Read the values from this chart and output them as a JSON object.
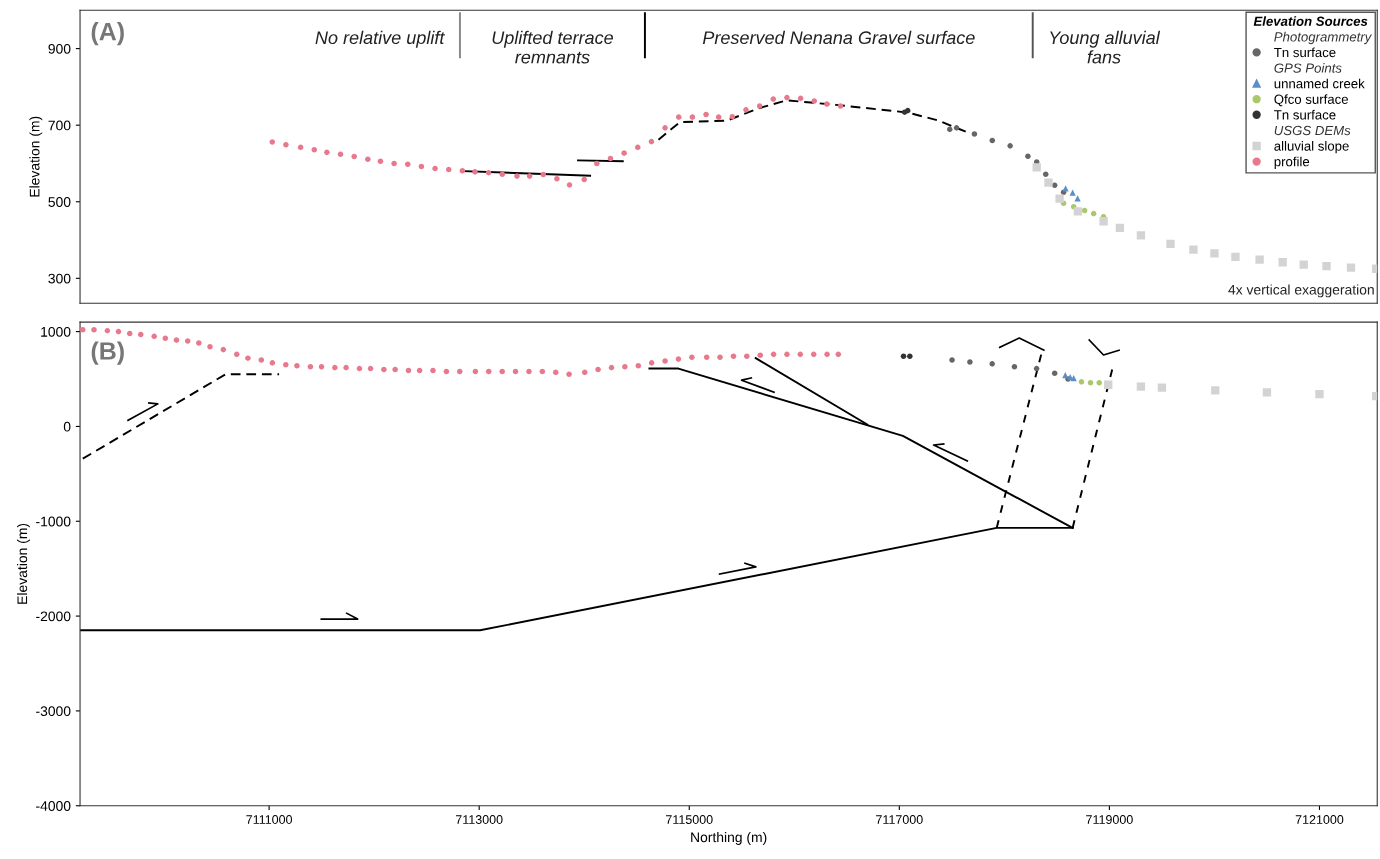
{
  "chart_data": [
    {
      "type": "scatter",
      "ylabel": "Elevation (m)",
      "xlim": [
        7109200,
        7121550
      ],
      "ylim": [
        235,
        1000
      ],
      "yticks": [
        300,
        500,
        700,
        900
      ],
      "tick_labels": "y",
      "grid": false,
      "legend": "top right",
      "legend_title": "Elevation Sources",
      "annotations": [
        "(A)",
        "No relative uplift",
        "Uplifted terrace\nremnants",
        "Preserved Nenana Gravel surface",
        "Young alluvial\nfans",
        "4x vertical exaggeration"
      ],
      "ref_lines": [
        {
          "axis": "x",
          "value": 7112817,
          "label": null,
          "color": "#888888"
        },
        {
          "axis": "x",
          "value": 7114578,
          "label": null,
          "color": "#000000"
        },
        {
          "axis": "x",
          "value": 7118270,
          "label": null,
          "color": "#555555"
        }
      ],
      "series": [
        {
          "name": "Photogrammetry",
          "marker": "none",
          "color": "#333333"
        },
        {
          "name": "Tn surface",
          "marker": "circle",
          "color": "#666666",
          "x": [
            7117480,
            7117545,
            7117715,
            7117885,
            7118055,
            7118224,
            7118308,
            7118394,
            7118479,
            7118564
          ],
          "values": [
            689,
            693,
            677,
            660,
            646,
            619,
            604,
            572,
            543,
            525
          ]
        },
        {
          "name": "GPS Points",
          "marker": "none",
          "color": "#333333"
        },
        {
          "name": "unnamed creek",
          "marker": "triangle",
          "color": "#5b8fc7",
          "x": [
            7118583,
            7118650,
            7118697
          ],
          "values": [
            535,
            524,
            509
          ]
        },
        {
          "name": "Qfco surface",
          "marker": "circle",
          "color": "#a8c86a",
          "x": [
            7118564,
            7118660,
            7118764,
            7118850,
            7118944
          ],
          "values": [
            496,
            487,
            477,
            469,
            461
          ]
        },
        {
          "name": "Tn surface",
          "marker": "circle",
          "color": "#333333",
          "x": [
            7117050,
            7117080
          ],
          "values": [
            734,
            738
          ]
        },
        {
          "name": "USGS DEMs",
          "marker": "none",
          "color": "#333333"
        },
        {
          "name": "alluvial slope",
          "marker": "square",
          "color": "#d3d3d3",
          "x": [
            7118308,
            7118420,
            7118526,
            7118700,
            7118945,
            7119100,
            7119300,
            7119582,
            7119800,
            7120000,
            7120200,
            7120430,
            7120650,
            7120850,
            7121067,
            7121300,
            7121540
          ],
          "values": [
            590,
            550,
            508,
            475,
            449,
            432,
            412,
            390,
            375,
            365,
            356,
            349,
            342,
            336,
            332,
            328,
            325
          ]
        },
        {
          "name": "profile",
          "marker": "circle",
          "color": "#e8788c",
          "x": [
            7111030,
            7111160,
            7111300,
            7111430,
            7111550,
            7111680,
            7111810,
            7111940,
            7112060,
            7112190,
            7112320,
            7112450,
            7112580,
            7112710,
            7112840,
            7112960,
            7113090,
            7113220,
            7113360,
            7113480,
            7113610,
            7113740,
            7113860,
            7114000,
            7114120,
            7114250,
            7114380,
            7114510,
            7114640,
            7114770,
            7114900,
            7115030,
            7115160,
            7115280,
            7115410,
            7115540,
            7115670,
            7115800,
            7115930,
            7116060,
            7116190,
            7116310,
            7116440
          ],
          "values": [
            656,
            649,
            642,
            636,
            629,
            624,
            618,
            611,
            606,
            600,
            598,
            592,
            587,
            584,
            581,
            578,
            576,
            572,
            567,
            567,
            571,
            560,
            544,
            558,
            600,
            613,
            627,
            642,
            657,
            693,
            721,
            721,
            728,
            721,
            722,
            740,
            750,
            768,
            772,
            770,
            763,
            755,
            750
          ]
        },
        {
          "type": "line",
          "line_style": "solid",
          "color": "#000000",
          "x": [
            7112858,
            7114056
          ],
          "values": [
            580,
            568
          ]
        },
        {
          "type": "line",
          "line_style": "solid",
          "color": "#000000",
          "x": [
            7113941,
            7114367
          ],
          "values": [
            608,
            606
          ]
        },
        {
          "type": "line",
          "line_style": "dashed",
          "color": "#000000",
          "x": [
            7114707,
            7114911,
            7115358,
            7115672,
            7115929,
            7116395,
            7116776,
            7117080,
            7117375,
            7117632
          ],
          "values": [
            662,
            708,
            712,
            745,
            765,
            753,
            742,
            733,
            712,
            683
          ]
        }
      ]
    },
    {
      "type": "scatter",
      "ylabel": "Elevation (m)",
      "xlabel": "Northing (m)",
      "xlim": [
        7109200,
        7121550
      ],
      "ylim": [
        -4000,
        1100
      ],
      "xticks": [
        7111000,
        7113000,
        7115000,
        7117000,
        7119000,
        7121000
      ],
      "yticks": [
        1000,
        0,
        -1000,
        -2000,
        -3000,
        -4000
      ],
      "grid": false,
      "annotations": [
        "(B)"
      ],
      "series": [
        {
          "marker": "circle",
          "color": "#666666",
          "x": [
            7117502,
            7117672,
            7117884,
            7118096,
            7118307,
            7118479,
            7118606
          ],
          "values": [
            700,
            680,
            660,
            630,
            610,
            560,
            500
          ]
        },
        {
          "marker": "triangle",
          "color": "#5b8fc7",
          "x": [
            7118580,
            7118627,
            7118660
          ],
          "values": [
            540,
            520,
            510
          ]
        },
        {
          "marker": "circle",
          "color": "#a8c86a",
          "x": [
            7118734,
            7118820,
            7118903
          ],
          "values": [
            470,
            460,
            460
          ]
        },
        {
          "marker": "circle",
          "color": "#333333",
          "x": [
            7117040,
            7117100
          ],
          "values": [
            740,
            740
          ]
        },
        {
          "marker": "square",
          "color": "#d3d3d3",
          "x": [
            7118989,
            7119300,
            7119500,
            7120008,
            7120500,
            7121000,
            7121540
          ],
          "values": [
            440,
            420,
            410,
            380,
            360,
            340,
            320
          ]
        },
        {
          "marker": "circle",
          "color": "#e8788c",
          "x": [
            7109226,
            7109333,
            7109460,
            7109566,
            7109673,
            7109778,
            7109906,
            7110012,
            7110118,
            7110225,
            7110331,
            7110437,
            7110564,
            7110692,
            7110798,
            7110926,
            7111031,
            7111159,
            7111265,
            7111393,
            7111499,
            7111626,
            7111733,
            7111860,
            7111966,
            7112093,
            7112200,
            7112327,
            7112433,
            7112560,
            7112688,
            7112815,
            7112964,
            7113091,
            7113219,
            7113346,
            7113474,
            7113601,
            7113729,
            7113856,
            7114005,
            7114132,
            7114260,
            7114387,
            7114515,
            7114642,
            7114770,
            7114897,
            7115025,
            7115166,
            7115293,
            7115421,
            7115548,
            7115676,
            7115803,
            7115930,
            7116057,
            7116185,
            7116312,
            7116419
          ],
          "values": [
            1020,
            1020,
            1010,
            1000,
            980,
            970,
            950,
            930,
            910,
            900,
            880,
            840,
            810,
            760,
            720,
            700,
            670,
            650,
            640,
            630,
            630,
            620,
            620,
            610,
            610,
            600,
            600,
            590,
            590,
            590,
            580,
            580,
            580,
            580,
            580,
            580,
            580,
            580,
            570,
            550,
            570,
            600,
            620,
            630,
            640,
            670,
            690,
            710,
            730,
            730,
            730,
            740,
            740,
            750,
            760,
            760,
            760,
            760,
            760,
            760
          ]
        },
        {
          "type": "line",
          "line_style": "dashed",
          "color": "#000000",
          "x": [
            7109226,
            7110585,
            7111095
          ],
          "values": [
            -340,
            550,
            550
          ]
        },
        {
          "type": "line",
          "line_style": "solid",
          "color": "#000000",
          "x": [
            7114621,
            7114897,
            7117034,
            7118650
          ],
          "values": [
            610,
            610,
            -100,
            -1070
          ]
        },
        {
          "type": "line",
          "line_style": "solid",
          "color": "#000000",
          "x": [
            7115633,
            7116695
          ],
          "values": [
            720,
            20
          ]
        },
        {
          "type": "line",
          "line_style": "solid",
          "color": "#000000",
          "x": [
            7109200,
            7110248,
            7113008,
            7117927,
            7118650
          ],
          "values": [
            -2150,
            -2150,
            -2150,
            -1070,
            -1070
          ]
        },
        {
          "type": "line",
          "line_style": "dotted",
          "color": "#000000",
          "x": [
            7117927,
            7118351
          ],
          "values": [
            -1070,
            760
          ]
        },
        {
          "type": "line",
          "line_style": "dotted",
          "color": "#000000",
          "x": [
            7118650,
            7119031
          ],
          "values": [
            -1070,
            620
          ]
        }
      ]
    }
  ]
}
